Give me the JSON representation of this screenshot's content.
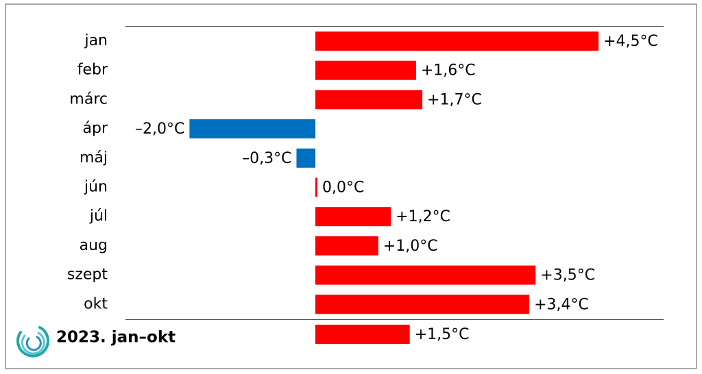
{
  "chart_data": {
    "type": "bar",
    "orientation": "horizontal",
    "categories": [
      "jan",
      "febr",
      "márc",
      "ápr",
      "máj",
      "jún",
      "júl",
      "aug",
      "szept",
      "okt"
    ],
    "values": [
      4.5,
      1.6,
      1.7,
      -2.0,
      -0.3,
      0.0,
      1.2,
      1.0,
      3.5,
      3.4
    ],
    "value_labels": [
      "+4,5°C",
      "+1,6°C",
      "+1,7°C",
      "–2,0°C",
      "–0,3°C",
      "0,0°C",
      "+1,2°C",
      "+1,0°C",
      "+3,5°C",
      "+3,4°C"
    ],
    "positive_color": "#ff0000",
    "negative_color": "#0070c0",
    "summary": {
      "label": "2023. jan–okt",
      "value": 1.5,
      "value_label": "+1,5°C"
    }
  }
}
